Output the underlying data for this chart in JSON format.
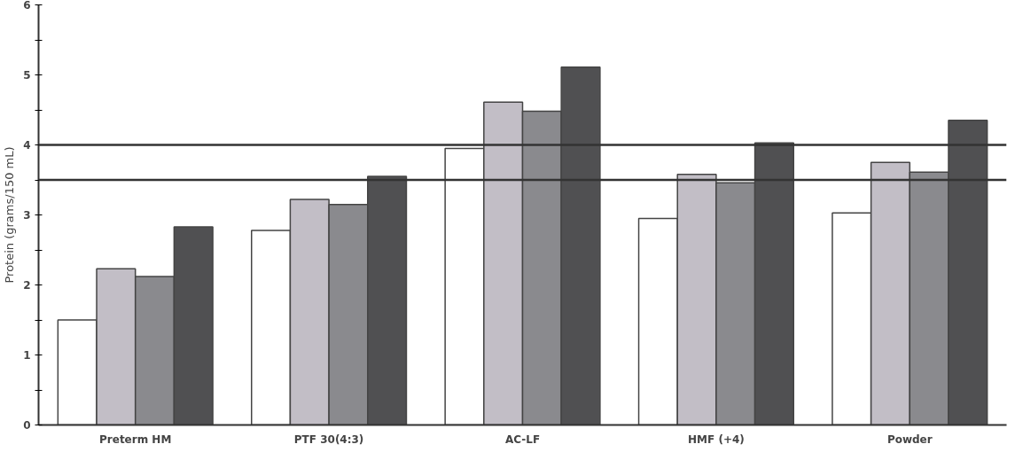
{
  "chart_data": {
    "type": "bar",
    "ylabel": "Protein (grams/150 mL)",
    "categories": [
      "Preterm HM",
      "PTF 30(4:3)",
      "AC-LF",
      "HMF (+4)",
      "Powder"
    ],
    "series": [
      {
        "color": "#ffffff",
        "values": [
          1.5,
          2.78,
          3.95,
          2.95,
          3.03
        ]
      },
      {
        "color": "#c2bec6",
        "values": [
          2.23,
          3.22,
          4.61,
          3.58,
          3.75
        ]
      },
      {
        "color": "#8a8a8e",
        "values": [
          2.12,
          3.15,
          4.48,
          3.46,
          3.61
        ]
      },
      {
        "color": "#505052",
        "values": [
          2.83,
          3.55,
          5.11,
          4.03,
          4.35
        ]
      }
    ],
    "ylim": [
      0,
      6
    ],
    "yticks": [
      0,
      {
        "value": 0.5,
        "label": null
      },
      1,
      {
        "value": 1.5,
        "label": null
      },
      2,
      {
        "value": 2.5,
        "label": null
      },
      3,
      {
        "value": 3.5,
        "label": null
      },
      4,
      {
        "value": 4.5,
        "label": null
      },
      5,
      {
        "value": 5.5,
        "label": null
      },
      6
    ],
    "ref_lines": [
      {
        "axis": "y",
        "value": 4,
        "color": "#333333"
      },
      {
        "axis": "y",
        "value": 3.5,
        "color": "#333333"
      }
    ],
    "grid": false
  }
}
